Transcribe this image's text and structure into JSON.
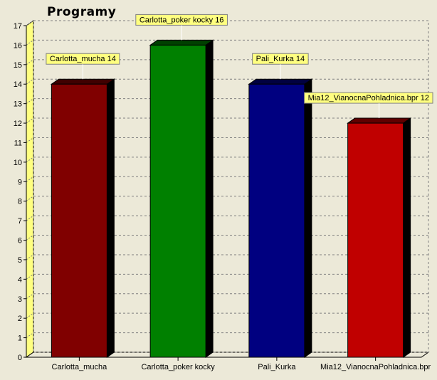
{
  "chart_data": {
    "type": "bar",
    "title": "Programy",
    "categories": [
      "Carlotta_mucha",
      "Carlotta_poker kocky",
      "Pali_Kurka",
      "Mia12_VianocnaPohladnica.bpr"
    ],
    "values": [
      14,
      16,
      14,
      12
    ],
    "data_labels": [
      "Carlotta_mucha 14",
      "Carlotta_poker kocky 16",
      "Pali_Kurka 14",
      "Mia12_VianocnaPohladnica.bpr 12"
    ],
    "ylim": [
      0,
      17
    ],
    "y_ticks": [
      "0",
      "1",
      "2",
      "3",
      "4",
      "5",
      "6",
      "7",
      "8",
      "9",
      "10",
      "11",
      "12",
      "13",
      "14",
      "15",
      "16",
      "17"
    ],
    "grid": true,
    "legend": false,
    "colors": [
      "#800000",
      "#008000",
      "#000080",
      "#c00000"
    ],
    "side_colors": [
      "#000000",
      "#000000",
      "#000000",
      "#000000"
    ],
    "top_colors": [
      "#400000",
      "#004000",
      "#000040",
      "#600000"
    ],
    "label_bg": "#ffff80",
    "background": "#ece9d8",
    "left_wall_color": "#ffff80"
  }
}
